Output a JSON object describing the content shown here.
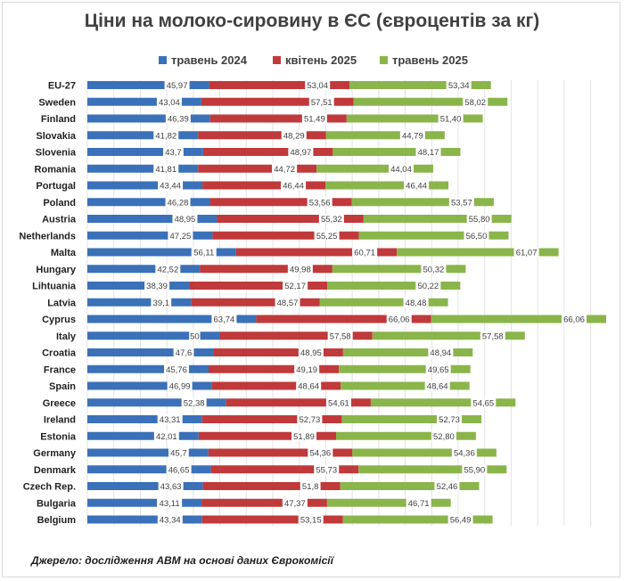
{
  "source": "Джерело: дослідження АВМ на основі даних Єврокомісії",
  "chart_data": {
    "type": "bar",
    "layout": "stacked-horizontal",
    "title": "Ціни на молоко-сировину в ЄС (євроцентів за кг)",
    "legend_position": "top",
    "grid": true,
    "categories": [
      "EU-27",
      "Sweden",
      "Finland",
      "Slovakia",
      "Slovenia",
      "Romania",
      "Portugal",
      "Poland",
      "Austria",
      "Netherlands",
      "Malta",
      "Hungary",
      "Lihtuania",
      "Latvia",
      "Cyprus",
      "Italy",
      "Croatia",
      "France",
      "Spain",
      "Greece",
      "Ireland",
      "Estonia",
      "Germany",
      "Denmark",
      "Czech Rep.",
      "Bulgaria",
      "Belgium"
    ],
    "series": [
      {
        "name": "травень 2024",
        "color": "#3a71b8",
        "values": [
          45.97,
          43.04,
          46.39,
          41.82,
          43.7,
          41.81,
          43.44,
          46.28,
          48.95,
          47.25,
          56.11,
          42.52,
          38.39,
          39.1,
          63.74,
          50,
          47.6,
          45.76,
          46.99,
          52.38,
          43.31,
          42.01,
          45.7,
          46.65,
          43.63,
          43.11,
          43.34
        ],
        "labels": [
          "45,97",
          "43,04",
          "46,39",
          "41,82",
          "43,7",
          "41,81",
          "43,44",
          "46,28",
          "48,95",
          "47,25",
          "56,11",
          "42,52",
          "38,39",
          "39,1",
          "63,74",
          "50",
          "47,6",
          "45,76",
          "46,99",
          "52,38",
          "43,31",
          "42,01",
          "45,7",
          "46,65",
          "43,63",
          "43,11",
          "43,34"
        ]
      },
      {
        "name": "квітень 2025",
        "color": "#c0393b",
        "values": [
          53.04,
          57.51,
          51.49,
          48.29,
          48.97,
          44.72,
          46.44,
          53.56,
          55.32,
          55.25,
          60.71,
          49.98,
          52.17,
          48.57,
          66.06,
          57.58,
          48.95,
          49.19,
          48.64,
          54.61,
          52.73,
          51.89,
          54.36,
          55.73,
          51.8,
          47.37,
          53.15
        ],
        "labels": [
          "53,04",
          "57,51",
          "51,49",
          "48,29",
          "48,97",
          "44,72",
          "46,44",
          "53,56",
          "55,32",
          "55,25",
          "60,71",
          "49,98",
          "52,17",
          "48,57",
          "66,06",
          "57,58",
          "48,95",
          "49,19",
          "48,64",
          "54,61",
          "52,73",
          "51,89",
          "54,36",
          "55,73",
          "51,8",
          "47,37",
          "53,15"
        ]
      },
      {
        "name": "травень 2025",
        "color": "#8ab54a",
        "values": [
          53.34,
          58.02,
          51.4,
          44.79,
          48.17,
          44.04,
          46.44,
          53.57,
          55.8,
          56.5,
          61.07,
          50.32,
          50.22,
          48.48,
          66.06,
          57.58,
          48.94,
          49.65,
          48.64,
          54.65,
          52.73,
          52.8,
          54.36,
          55.9,
          52.46,
          46.71,
          56.49
        ],
        "labels": [
          "53,34",
          "58,02",
          "51,40",
          "44,79",
          "48,17",
          "44,04",
          "46,44",
          "53,57",
          "55,80",
          "56,50",
          "61,07",
          "50,32",
          "50,22",
          "48,48",
          "66,06",
          "57,58",
          "48,94",
          "49,65",
          "48,64",
          "54,65",
          "52,73",
          "52,80",
          "54,36",
          "55,90",
          "52,46",
          "46,71",
          "56,49"
        ]
      }
    ]
  }
}
